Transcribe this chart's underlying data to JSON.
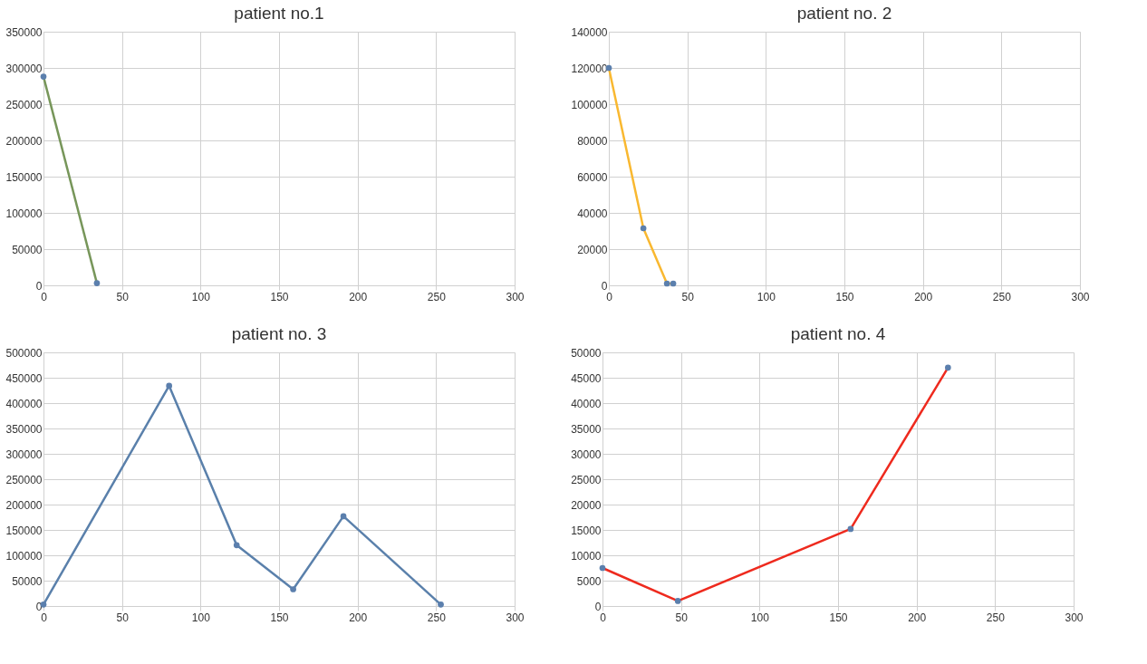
{
  "chart_data": [
    {
      "type": "line",
      "title": "patient no.1",
      "x": [
        0,
        34
      ],
      "series": [
        {
          "color": "#77965a",
          "values": [
            288000,
            3000
          ]
        }
      ],
      "xlim": [
        0,
        300
      ],
      "xticks": [
        0,
        50,
        100,
        150,
        200,
        250,
        300
      ],
      "ylim": [
        0,
        350000
      ],
      "yticks": [
        0,
        50000,
        100000,
        150000,
        200000,
        250000,
        300000,
        350000
      ],
      "grid": true,
      "marker": "circle"
    },
    {
      "type": "line",
      "title": "patient no. 2",
      "x": [
        0,
        22,
        37,
        41
      ],
      "series": [
        {
          "color": "#f9b830",
          "values": [
            120000,
            31500,
            1000,
            1000
          ]
        }
      ],
      "xlim": [
        0,
        300
      ],
      "xticks": [
        0,
        50,
        100,
        150,
        200,
        250,
        300
      ],
      "ylim": [
        0,
        140000
      ],
      "yticks": [
        0,
        20000,
        40000,
        60000,
        80000,
        100000,
        120000,
        140000
      ],
      "grid": true,
      "marker": "circle"
    },
    {
      "type": "line",
      "title": "patient no. 3",
      "x": [
        0,
        80,
        123,
        159,
        191,
        253
      ],
      "series": [
        {
          "color": "#5a80ab",
          "values": [
            3000,
            434000,
            120000,
            33000,
            177000,
            3000
          ]
        }
      ],
      "xlim": [
        0,
        300
      ],
      "xticks": [
        0,
        50,
        100,
        150,
        200,
        250,
        300
      ],
      "ylim": [
        0,
        500000
      ],
      "yticks": [
        0,
        50000,
        100000,
        150000,
        200000,
        250000,
        300000,
        350000,
        400000,
        450000,
        500000
      ],
      "grid": true,
      "marker": "circle"
    },
    {
      "type": "line",
      "title": "patient no. 4",
      "x": [
        0,
        48,
        158,
        220
      ],
      "series": [
        {
          "color": "#ee2a1e",
          "values": [
            7500,
            1000,
            15200,
            47000
          ]
        }
      ],
      "xlim": [
        0,
        300
      ],
      "xticks": [
        0,
        50,
        100,
        150,
        200,
        250,
        300
      ],
      "ylim": [
        0,
        50000
      ],
      "yticks": [
        0,
        5000,
        10000,
        15000,
        20000,
        25000,
        30000,
        35000,
        40000,
        45000,
        50000
      ],
      "grid": true,
      "marker": "circle"
    }
  ]
}
